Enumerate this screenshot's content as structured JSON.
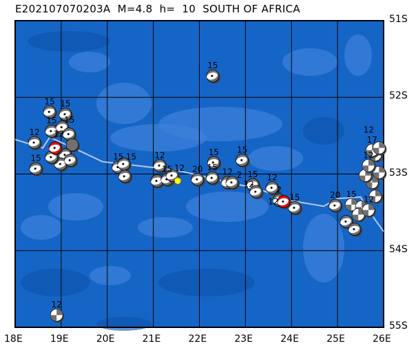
{
  "title": "E202107070203A  M=4.8  h=  10  SOUTH OF AFRICA",
  "map": {
    "lon_range": [
      18,
      26
    ],
    "lat_range": [
      -51,
      -55
    ],
    "lon_ticks": [
      "18E",
      "19E",
      "20E",
      "21E",
      "22E",
      "23E",
      "24E",
      "25E",
      "26E"
    ],
    "lat_ticks": [
      "51S",
      "52S",
      "53S",
      "54S",
      "55S"
    ],
    "colors": {
      "ocean": "#1565c6",
      "ocean_light": "#3d82da",
      "ocean_dark": "#0d52aa",
      "grid": "#000000",
      "boundary": "#b8c8f0",
      "mechanism_gray": "#707070",
      "mechanism_highlight": "#e01010",
      "epicenter": "#ffff00"
    },
    "plate_boundary": [
      [
        18,
        52.55
      ],
      [
        18.6,
        52.66
      ],
      [
        18.75,
        52.52
      ],
      [
        19.3,
        52.67
      ],
      [
        19.9,
        52.84
      ],
      [
        21.5,
        52.95
      ],
      [
        23.3,
        53.2
      ],
      [
        24.0,
        53.35
      ],
      [
        24.7,
        53.42
      ],
      [
        25.0,
        53.32
      ],
      [
        25.5,
        53.3
      ],
      [
        25.7,
        53.5
      ],
      [
        26,
        53.75
      ]
    ],
    "epicenter": {
      "lon": 21.53,
      "lat": 53.09,
      "icon": "yellow-hexagon"
    },
    "events": [
      {
        "lon": 22.29,
        "lat": 51.72,
        "label": "15",
        "mech": "normal",
        "red": false
      },
      {
        "lon": 18.75,
        "lat": 52.19,
        "label": "15",
        "mech": "normal",
        "red": false
      },
      {
        "lon": 19.09,
        "lat": 52.22,
        "label": "15",
        "mech": "normal",
        "red": false
      },
      {
        "lon": 18.42,
        "lat": 52.59,
        "label": "12",
        "mech": "normal",
        "red": false
      },
      {
        "lon": 18.45,
        "lat": 52.93,
        "label": "15",
        "mech": "normal",
        "red": false
      },
      {
        "lon": 18.79,
        "lat": 52.44,
        "label": "15",
        "mech": "normal",
        "red": false
      },
      {
        "lon": 19.02,
        "lat": 52.39,
        "label": "15",
        "mech": "normal",
        "red": false
      },
      {
        "lon": 19.17,
        "lat": 52.48,
        "label": "12",
        "mech": "normal",
        "red": false
      },
      {
        "lon": 19.24,
        "lat": 52.62,
        "label": "",
        "mech": "solid",
        "red": false
      },
      {
        "lon": 19.09,
        "lat": 52.75,
        "label": "",
        "mech": "normal",
        "red": false
      },
      {
        "lon": 18.99,
        "lat": 52.87,
        "label": "",
        "mech": "normal",
        "red": false
      },
      {
        "lon": 19.2,
        "lat": 52.82,
        "label": "",
        "mech": "normal",
        "red": false
      },
      {
        "lon": 18.79,
        "lat": 52.78,
        "label": "",
        "mech": "normal",
        "red": false
      },
      {
        "lon": 18.87,
        "lat": 52.66,
        "label": "",
        "mech": "normal",
        "red": true
      },
      {
        "lon": 20.24,
        "lat": 52.91,
        "label": "15",
        "mech": "normal",
        "red": false
      },
      {
        "lon": 20.36,
        "lat": 52.87,
        "label": "15",
        "mech": "normal",
        "red": false
      },
      {
        "lon": 20.38,
        "lat": 53.03,
        "label": "",
        "mech": "normal",
        "red": false
      },
      {
        "lon": 21.14,
        "lat": 52.89,
        "label": "12",
        "mech": "normal",
        "red": false
      },
      {
        "lon": 21.08,
        "lat": 53.09,
        "label": "",
        "mech": "normal",
        "red": false
      },
      {
        "lon": 21.3,
        "lat": 53.07,
        "label": "15",
        "mech": "normal",
        "red": false
      },
      {
        "lon": 21.41,
        "lat": 53.02,
        "label": "12",
        "mech": "normal",
        "red": false
      },
      {
        "lon": 21.96,
        "lat": 53.07,
        "label": "20",
        "mech": "normal",
        "red": false
      },
      {
        "lon": 22.28,
        "lat": 53.05,
        "label": "15",
        "mech": "normal",
        "red": false
      },
      {
        "lon": 22.31,
        "lat": 52.85,
        "label": "15",
        "mech": "normal",
        "red": false
      },
      {
        "lon": 22.61,
        "lat": 53.11,
        "label": "12",
        "mech": "normal",
        "red": false
      },
      {
        "lon": 22.71,
        "lat": 53.11,
        "label": "2",
        "mech": "normal",
        "red": false
      },
      {
        "lon": 22.93,
        "lat": 52.82,
        "label": "15",
        "mech": "normal",
        "red": false
      },
      {
        "lon": 23.16,
        "lat": 53.14,
        "label": "15",
        "mech": "normal",
        "red": false
      },
      {
        "lon": 23.23,
        "lat": 53.23,
        "label": "12",
        "mech": "normal",
        "red": false
      },
      {
        "lon": 23.58,
        "lat": 53.18,
        "label": "12",
        "mech": "normal",
        "red": false
      },
      {
        "lon": 23.73,
        "lat": 53.34,
        "label": "2",
        "mech": "normal",
        "red": false
      },
      {
        "lon": 24.07,
        "lat": 53.44,
        "label": "15",
        "mech": "normal",
        "red": false
      },
      {
        "lon": 23.83,
        "lat": 53.36,
        "label": "12",
        "mech": "normal",
        "red": true
      },
      {
        "lon": 24.95,
        "lat": 53.41,
        "label": "20",
        "mech": "normal",
        "red": false
      },
      {
        "lon": 25.19,
        "lat": 53.62,
        "label": "",
        "mech": "normal",
        "red": false
      },
      {
        "lon": 25.37,
        "lat": 53.72,
        "label": "",
        "mech": "normal",
        "red": false
      },
      {
        "lon": 25.3,
        "lat": 53.4,
        "label": "15",
        "mech": "strike-slip",
        "red": false
      },
      {
        "lon": 25.52,
        "lat": 53.43,
        "label": "12",
        "mech": "strike-slip",
        "red": false
      },
      {
        "lon": 25.45,
        "lat": 53.53,
        "label": "",
        "mech": "strike-slip",
        "red": false
      },
      {
        "lon": 25.67,
        "lat": 53.47,
        "label": "",
        "mech": "strike-slip",
        "red": false
      },
      {
        "lon": 25.82,
        "lat": 53.29,
        "label": "",
        "mech": "strike-slip",
        "red": false
      },
      {
        "lon": 25.75,
        "lat": 53.11,
        "label": "",
        "mech": "strike-slip",
        "red": false
      },
      {
        "lon": 25.6,
        "lat": 53.02,
        "label": "",
        "mech": "strike-slip",
        "red": false
      },
      {
        "lon": 25.9,
        "lat": 52.98,
        "label": "",
        "mech": "strike-slip",
        "red": false
      },
      {
        "lon": 25.67,
        "lat": 52.89,
        "label": "12",
        "mech": "strike-slip",
        "red": false
      },
      {
        "lon": 25.82,
        "lat": 52.75,
        "label": "",
        "mech": "strike-slip",
        "red": false
      },
      {
        "lon": 25.75,
        "lat": 52.69,
        "label": "17",
        "mech": "strike-slip",
        "red": false
      },
      {
        "lon": 25.9,
        "lat": 52.66,
        "label": "12",
        "mech": "strike-slip",
        "red": false
      },
      {
        "lon": 18.9,
        "lat": 54.84,
        "label": "12",
        "mech": "strike-slip",
        "red": false
      }
    ]
  }
}
